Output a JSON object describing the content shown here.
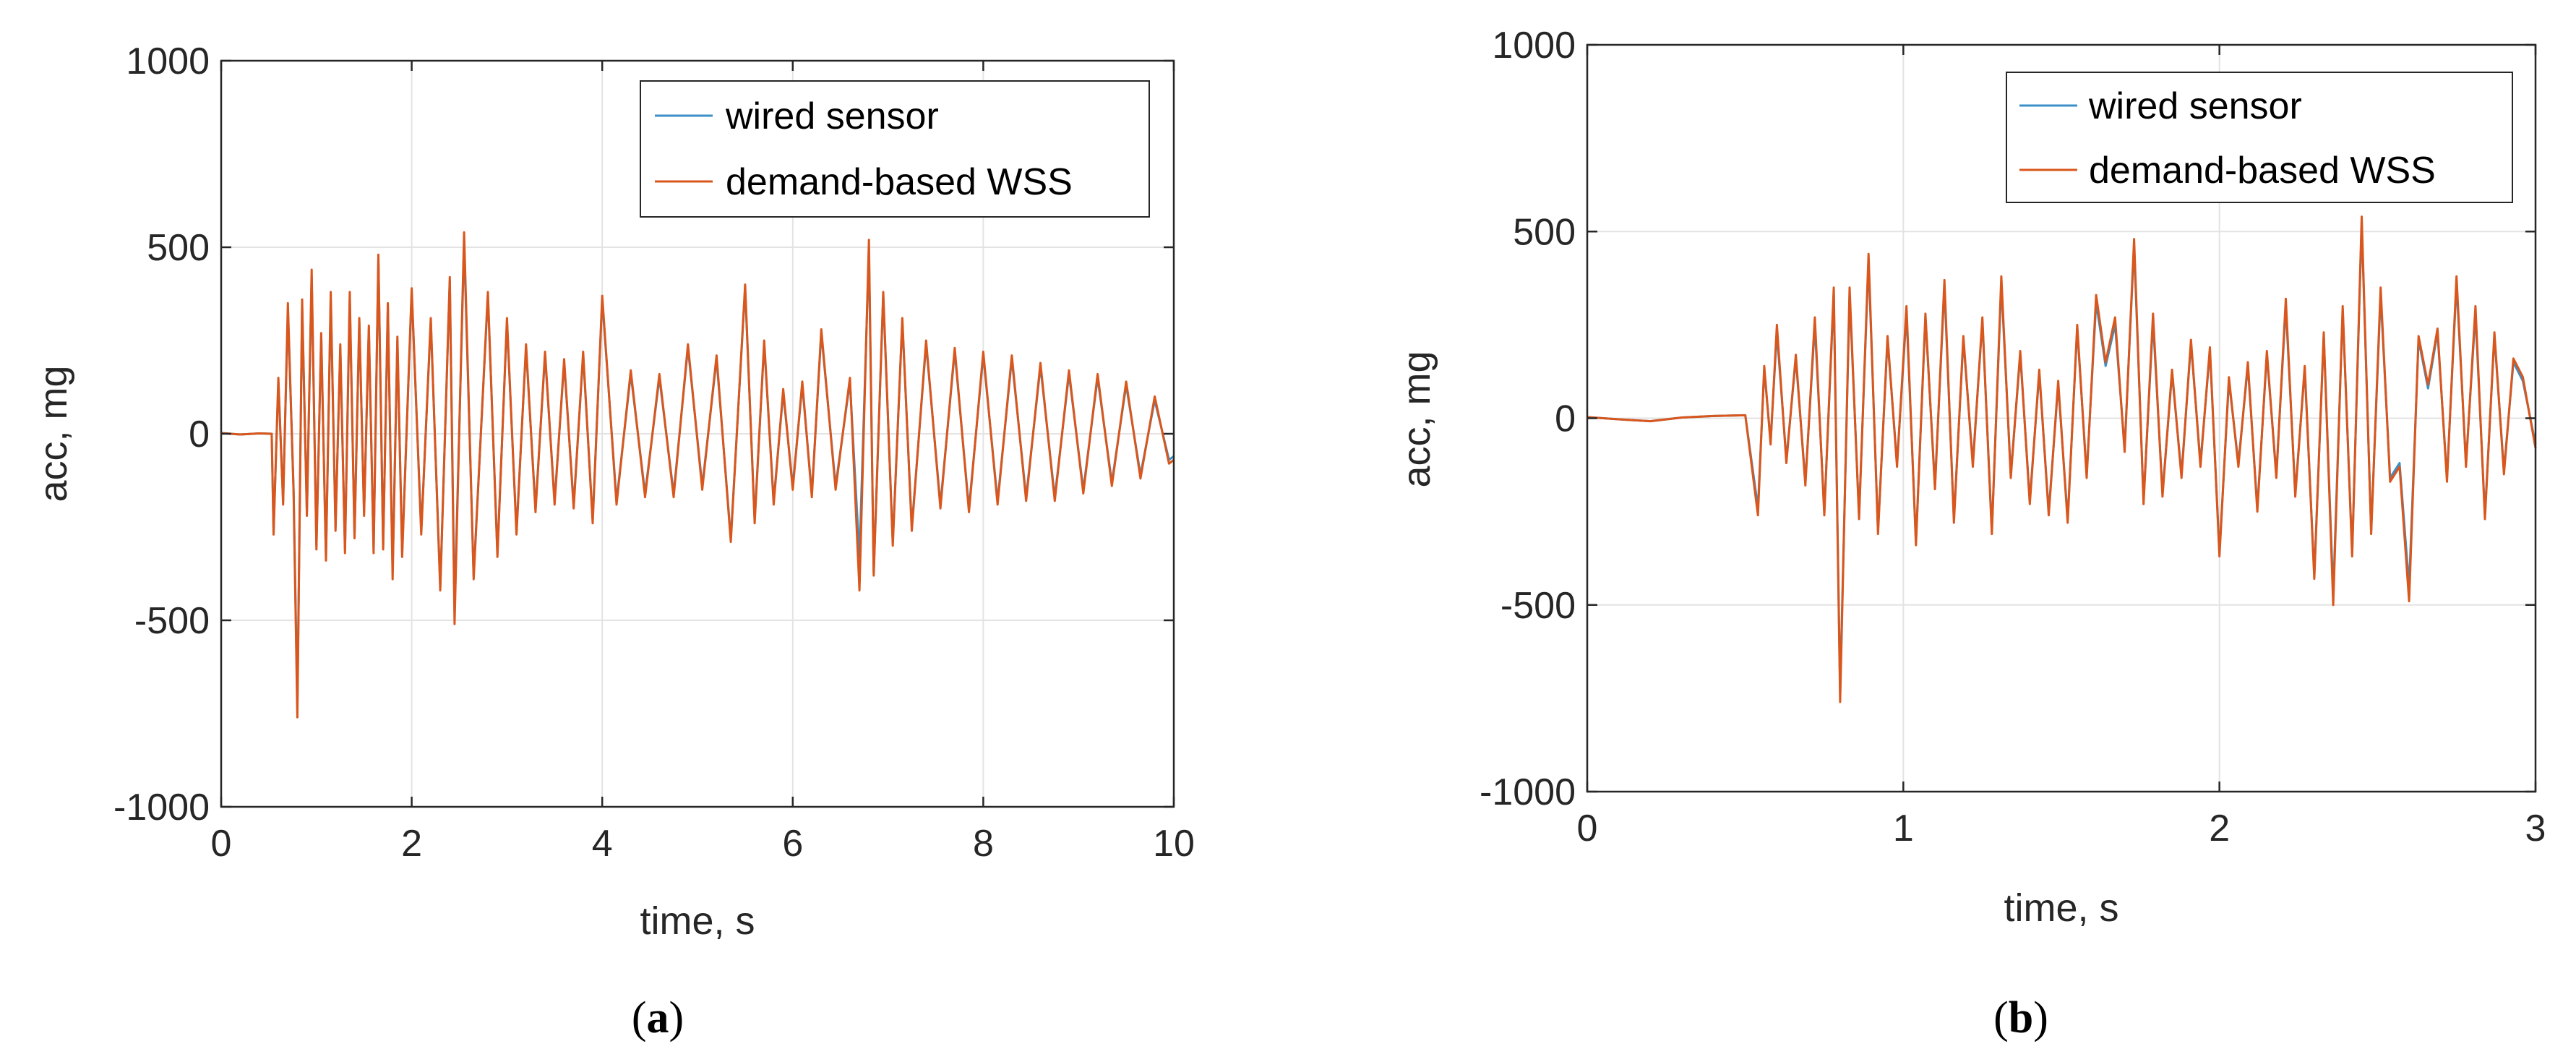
{
  "colors": {
    "wired": "#3a8fc7",
    "wss": "#d9561c",
    "grid": "#e3e3e3",
    "axis": "#262626"
  },
  "chart_data": [
    {
      "type": "line",
      "panel": "a",
      "caption": {
        "open": "(",
        "letter": "a",
        "close": ")"
      },
      "xlabel": "time, s",
      "ylabel": "acc, mg",
      "xlim": [
        0,
        10
      ],
      "ylim": [
        -1000,
        1000
      ],
      "xticks": [
        0,
        2,
        4,
        6,
        8,
        10
      ],
      "xtick_labels": [
        "0",
        "2",
        "4",
        "6",
        "8",
        "10"
      ],
      "yticks": [
        -1000,
        -500,
        0,
        500,
        1000
      ],
      "ytick_labels": [
        "-1000",
        "-500",
        "0",
        "500",
        "1000"
      ],
      "grid": true,
      "legend_position": "top-right",
      "series": [
        {
          "name": "wired sensor",
          "color": "#3a8fc7",
          "x": [
            0,
            0.2,
            0.4,
            0.53,
            0.55,
            0.6,
            0.65,
            0.7,
            0.76,
            0.8,
            0.85,
            0.9,
            0.95,
            1.0,
            1.05,
            1.1,
            1.15,
            1.2,
            1.25,
            1.3,
            1.35,
            1.4,
            1.45,
            1.5,
            1.55,
            1.6,
            1.65,
            1.7,
            1.75,
            1.8,
            1.85,
            1.9,
            2.0,
            2.1,
            2.2,
            2.3,
            2.4,
            2.45,
            2.55,
            2.65,
            2.8,
            2.9,
            3.0,
            3.1,
            3.2,
            3.3,
            3.4,
            3.5,
            3.6,
            3.7,
            3.8,
            3.9,
            4.0,
            4.15,
            4.3,
            4.45,
            4.6,
            4.75,
            4.9,
            5.05,
            5.2,
            5.35,
            5.5,
            5.6,
            5.7,
            5.8,
            5.9,
            6.0,
            6.1,
            6.2,
            6.3,
            6.45,
            6.6,
            6.7,
            6.8,
            6.85,
            6.95,
            7.05,
            7.15,
            7.25,
            7.4,
            7.55,
            7.7,
            7.85,
            8.0,
            8.15,
            8.3,
            8.45,
            8.6,
            8.75,
            8.9,
            9.05,
            9.2,
            9.35,
            9.5,
            9.65,
            9.8,
            9.95,
            10.0
          ],
          "y": [
            2,
            -2,
            1,
            0,
            -260,
            140,
            -180,
            330,
            -150,
            -730,
            340,
            -210,
            420,
            -300,
            260,
            -330,
            360,
            -250,
            230,
            -310,
            360,
            -270,
            300,
            -210,
            280,
            -310,
            470,
            -300,
            340,
            -370,
            250,
            -320,
            380,
            -260,
            300,
            -410,
            410,
            -470,
            510,
            -380,
            370,
            -320,
            300,
            -260,
            230,
            -200,
            210,
            -180,
            190,
            -190,
            210,
            -230,
            360,
            -180,
            160,
            -160,
            150,
            -160,
            230,
            -140,
            200,
            -280,
            390,
            -230,
            240,
            -180,
            110,
            -140,
            130,
            -160,
            270,
            -140,
            140,
            -330,
            490,
            -370,
            370,
            -290,
            300,
            -250,
            240,
            -190,
            220,
            -200,
            210,
            -180,
            200,
            -170,
            180,
            -170,
            160,
            -150,
            150,
            -130,
            130,
            -110,
            90,
            -70,
            -60
          ]
        },
        {
          "name": "demand-based WSS",
          "color": "#d9561c",
          "x": [
            0,
            0.2,
            0.4,
            0.53,
            0.55,
            0.6,
            0.65,
            0.7,
            0.76,
            0.8,
            0.85,
            0.9,
            0.95,
            1.0,
            1.05,
            1.1,
            1.15,
            1.2,
            1.25,
            1.3,
            1.35,
            1.4,
            1.45,
            1.5,
            1.55,
            1.6,
            1.65,
            1.7,
            1.75,
            1.8,
            1.85,
            1.9,
            2.0,
            2.1,
            2.2,
            2.3,
            2.4,
            2.45,
            2.55,
            2.65,
            2.8,
            2.9,
            3.0,
            3.1,
            3.2,
            3.3,
            3.4,
            3.5,
            3.6,
            3.7,
            3.8,
            3.9,
            4.0,
            4.15,
            4.3,
            4.45,
            4.6,
            4.75,
            4.9,
            5.05,
            5.2,
            5.35,
            5.5,
            5.6,
            5.7,
            5.8,
            5.9,
            6.0,
            6.1,
            6.2,
            6.3,
            6.45,
            6.6,
            6.7,
            6.8,
            6.85,
            6.95,
            7.05,
            7.15,
            7.25,
            7.4,
            7.55,
            7.7,
            7.85,
            8.0,
            8.15,
            8.3,
            8.45,
            8.6,
            8.75,
            8.9,
            9.05,
            9.2,
            9.35,
            9.5,
            9.65,
            9.8,
            9.95,
            10.0
          ],
          "y": [
            2,
            -2,
            1,
            0,
            -270,
            150,
            -190,
            350,
            -160,
            -760,
            360,
            -220,
            440,
            -310,
            270,
            -340,
            380,
            -260,
            240,
            -320,
            380,
            -280,
            310,
            -220,
            290,
            -320,
            480,
            -310,
            350,
            -390,
            260,
            -330,
            390,
            -270,
            310,
            -420,
            420,
            -510,
            540,
            -390,
            380,
            -330,
            310,
            -270,
            240,
            -210,
            220,
            -190,
            200,
            -200,
            220,
            -240,
            370,
            -190,
            170,
            -170,
            160,
            -170,
            240,
            -150,
            210,
            -290,
            400,
            -240,
            250,
            -190,
            120,
            -150,
            140,
            -170,
            280,
            -150,
            150,
            -420,
            520,
            -380,
            380,
            -300,
            310,
            -260,
            250,
            -200,
            230,
            -210,
            220,
            -190,
            210,
            -180,
            190,
            -180,
            170,
            -160,
            160,
            -140,
            140,
            -120,
            100,
            -80,
            -70
          ]
        }
      ]
    },
    {
      "type": "line",
      "panel": "b",
      "caption": {
        "open": "(",
        "letter": "b",
        "close": ")"
      },
      "xlabel": "time, s",
      "ylabel": "acc, mg",
      "xlim": [
        0,
        3
      ],
      "ylim": [
        -1000,
        1000
      ],
      "xticks": [
        0,
        1,
        2,
        3
      ],
      "xtick_labels": [
        "0",
        "1",
        "2",
        "3"
      ],
      "yticks": [
        -1000,
        -500,
        0,
        500,
        1000
      ],
      "ytick_labels": [
        "-1000",
        "-500",
        "0",
        "500",
        "1000"
      ],
      "grid": true,
      "legend_position": "top-right",
      "series": [
        {
          "name": "wired sensor",
          "color": "#3a8fc7",
          "x": [
            0,
            0.1,
            0.2,
            0.3,
            0.4,
            0.5,
            0.54,
            0.56,
            0.58,
            0.6,
            0.63,
            0.66,
            0.69,
            0.72,
            0.75,
            0.78,
            0.8,
            0.83,
            0.86,
            0.89,
            0.92,
            0.95,
            0.98,
            1.01,
            1.04,
            1.07,
            1.1,
            1.13,
            1.16,
            1.19,
            1.22,
            1.25,
            1.28,
            1.31,
            1.34,
            1.37,
            1.4,
            1.43,
            1.46,
            1.49,
            1.52,
            1.55,
            1.58,
            1.61,
            1.64,
            1.67,
            1.7,
            1.73,
            1.76,
            1.79,
            1.82,
            1.85,
            1.88,
            1.91,
            1.94,
            1.97,
            2.0,
            2.03,
            2.06,
            2.09,
            2.12,
            2.15,
            2.18,
            2.21,
            2.24,
            2.27,
            2.3,
            2.33,
            2.36,
            2.39,
            2.42,
            2.45,
            2.48,
            2.51,
            2.54,
            2.57,
            2.6,
            2.63,
            2.66,
            2.69,
            2.72,
            2.75,
            2.78,
            2.81,
            2.84,
            2.87,
            2.9,
            2.93,
            2.96,
            3.0
          ],
          "y": [
            3,
            -3,
            -8,
            2,
            6,
            8,
            -240,
            130,
            -60,
            230,
            -110,
            160,
            -170,
            250,
            -250,
            330,
            -730,
            330,
            -260,
            420,
            -300,
            210,
            -120,
            280,
            -330,
            270,
            -180,
            350,
            -270,
            210,
            -120,
            260,
            -300,
            360,
            -150,
            170,
            -220,
            120,
            -250,
            90,
            -270,
            240,
            -150,
            310,
            140,
            250,
            -80,
            460,
            -220,
            260,
            -200,
            120,
            -150,
            200,
            -120,
            180,
            -360,
            100,
            -120,
            140,
            -240,
            170,
            -150,
            300,
            -200,
            130,
            -420,
            220,
            -470,
            290,
            -360,
            520,
            -300,
            330,
            -160,
            -120,
            -450,
            210,
            80,
            230,
            -160,
            360,
            -120,
            280,
            -260,
            220,
            -140,
            150,
            100,
            -70
          ]
        },
        {
          "name": "demand-based WSS",
          "color": "#d9561c",
          "x": [
            0,
            0.1,
            0.2,
            0.3,
            0.4,
            0.5,
            0.54,
            0.56,
            0.58,
            0.6,
            0.63,
            0.66,
            0.69,
            0.72,
            0.75,
            0.78,
            0.8,
            0.83,
            0.86,
            0.89,
            0.92,
            0.95,
            0.98,
            1.01,
            1.04,
            1.07,
            1.1,
            1.13,
            1.16,
            1.19,
            1.22,
            1.25,
            1.28,
            1.31,
            1.34,
            1.37,
            1.4,
            1.43,
            1.46,
            1.49,
            1.52,
            1.55,
            1.58,
            1.61,
            1.64,
            1.67,
            1.7,
            1.73,
            1.76,
            1.79,
            1.82,
            1.85,
            1.88,
            1.91,
            1.94,
            1.97,
            2.0,
            2.03,
            2.06,
            2.09,
            2.12,
            2.15,
            2.18,
            2.21,
            2.24,
            2.27,
            2.3,
            2.33,
            2.36,
            2.39,
            2.42,
            2.45,
            2.48,
            2.51,
            2.54,
            2.57,
            2.6,
            2.63,
            2.66,
            2.69,
            2.72,
            2.75,
            2.78,
            2.81,
            2.84,
            2.87,
            2.9,
            2.93,
            2.96,
            3.0
          ],
          "y": [
            3,
            -3,
            -8,
            2,
            6,
            8,
            -260,
            140,
            -70,
            250,
            -120,
            170,
            -180,
            270,
            -260,
            350,
            -760,
            350,
            -270,
            440,
            -310,
            220,
            -130,
            300,
            -340,
            280,
            -190,
            370,
            -280,
            220,
            -130,
            270,
            -310,
            380,
            -160,
            180,
            -230,
            130,
            -260,
            100,
            -280,
            250,
            -160,
            330,
            150,
            270,
            -90,
            480,
            -230,
            280,
            -210,
            130,
            -160,
            210,
            -130,
            190,
            -370,
            110,
            -130,
            150,
            -250,
            180,
            -160,
            320,
            -210,
            140,
            -430,
            230,
            -500,
            300,
            -370,
            540,
            -310,
            350,
            -170,
            -130,
            -490,
            220,
            90,
            240,
            -170,
            380,
            -130,
            300,
            -270,
            230,
            -150,
            160,
            110,
            -80
          ]
        }
      ]
    }
  ]
}
